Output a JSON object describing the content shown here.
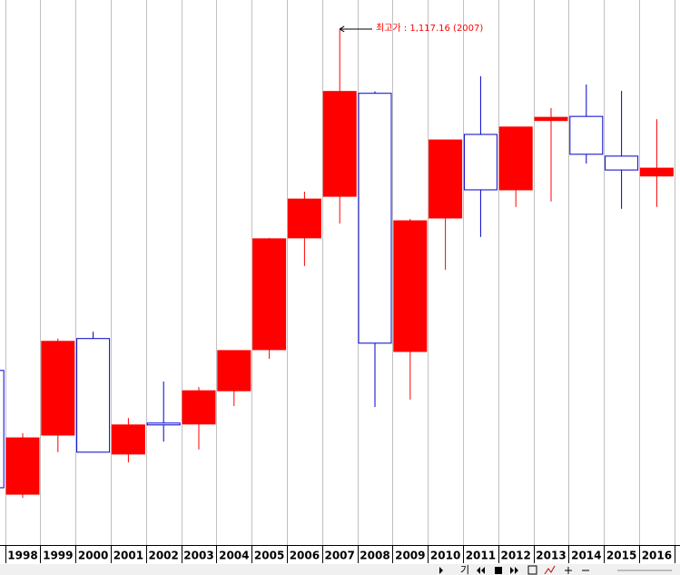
{
  "chart_data": {
    "type": "candlestick",
    "categories": [
      null,
      "1998",
      "1999",
      "2000",
      "2001",
      "2002",
      "2003",
      "2004",
      "2005",
      "2006",
      "2007",
      "2008",
      "2009",
      "2010",
      "2011",
      "2012",
      "2013",
      "2014",
      "2015",
      "2016"
    ],
    "open": [
      378,
      110,
      238,
      447,
      197,
      264,
      262,
      334,
      423,
      665,
      755,
      978,
      419,
      708,
      889,
      769,
      919,
      928,
      842,
      799
    ],
    "high": [
      378,
      242,
      447,
      462,
      275,
      354,
      342,
      421,
      665,
      765,
      1117.16,
      982,
      706,
      877,
      1015,
      905,
      946,
      997,
      983,
      922
    ],
    "low": [
      124,
      102,
      201,
      201,
      179,
      224,
      207,
      301,
      403,
      604,
      696,
      299,
      315,
      596,
      667,
      732,
      744,
      826,
      728,
      732
    ],
    "close": [
      124,
      232,
      441,
      201,
      260,
      260,
      334,
      421,
      663,
      749,
      982,
      437,
      702,
      877,
      769,
      905,
      926,
      846,
      812,
      816
    ],
    "ylim": [
      0,
      1180
    ],
    "up_color": "#ff0000",
    "down_color": "#0000cc",
    "annotation": "최고가 : 1,117.16 (2007)",
    "toolbar_label": "기"
  }
}
